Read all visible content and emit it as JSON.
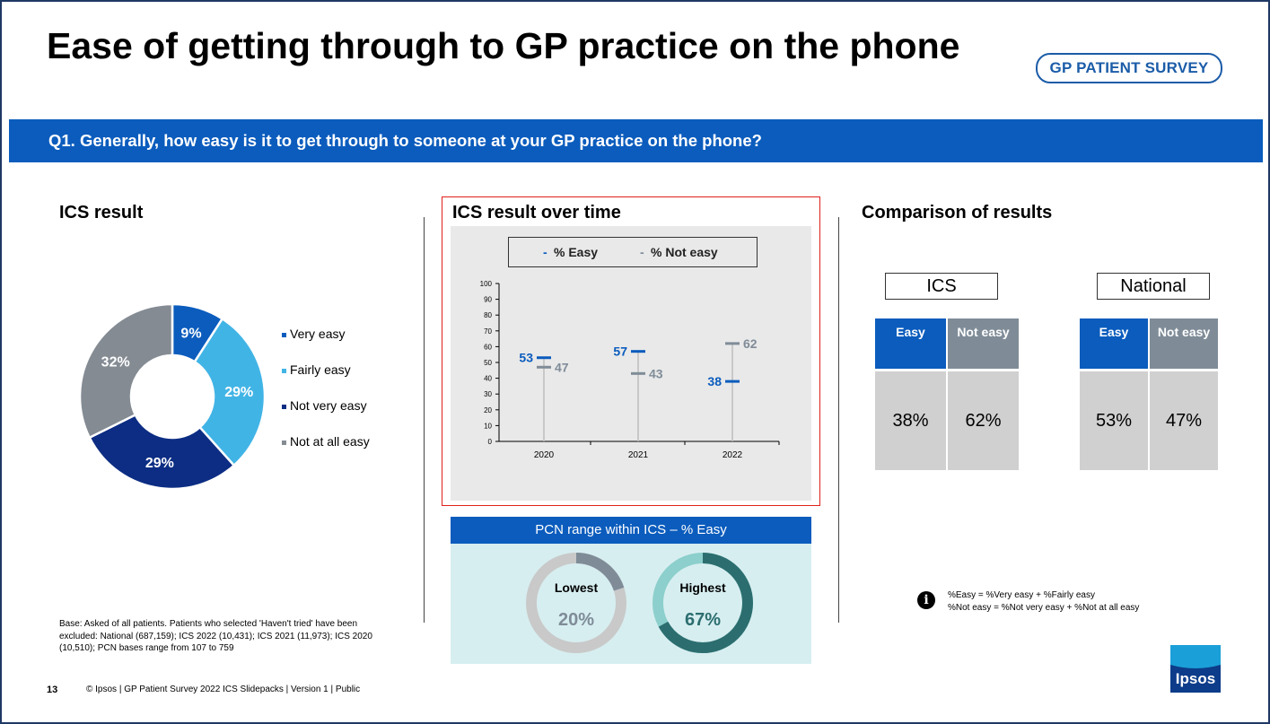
{
  "title": "Ease of getting through to GP practice on the phone",
  "logo_text": "GP PATIENT SURVEY",
  "question": "Q1. Generally, how easy is it to get through to someone at your GP practice on the phone?",
  "ics_result": {
    "title": "ICS result",
    "legend": [
      {
        "label": "Very easy",
        "color": "#0b5cbd"
      },
      {
        "label": "Fairly easy",
        "color": "#41b4e6"
      },
      {
        "label": "Not very easy",
        "color": "#0c2d83"
      },
      {
        "label": "Not at all easy",
        "color": "#848b93"
      }
    ]
  },
  "trend": {
    "title": "ICS result over time",
    "legend_easy": "% Easy",
    "legend_not_easy": "% Not easy"
  },
  "pcn": {
    "title": "PCN range within ICS – % Easy",
    "lowest_label": "Lowest",
    "lowest_value": "20%",
    "lowest_fraction": 0.2,
    "highest_label": "Highest",
    "highest_value": "67%",
    "highest_fraction": 0.67
  },
  "comparison": {
    "title": "Comparison of results",
    "ics": {
      "label": "ICS",
      "easy_head": "Easy",
      "not_easy_head": "Not easy",
      "easy": "38%",
      "not_easy": "62%"
    },
    "national": {
      "label": "National",
      "easy_head": "Easy",
      "not_easy_head": "Not easy",
      "easy": "53%",
      "not_easy": "47%"
    }
  },
  "info_note": [
    "%Easy = %Very easy + %Fairly easy",
    "%Not easy = %Not very easy + %Not at all easy"
  ],
  "base_note": "Base: Asked of all patients. Patients who selected 'Haven't tried' have been excluded: National (687,159); ICS 2022 (10,431); ICS 2021 (11,973); ICS 2020 (10,510); PCN bases range from 107 to 759",
  "footer": {
    "page_number": "13",
    "text": "© Ipsos | GP Patient Survey 2022 ICS Slidepacks | Version 1 | Public"
  },
  "ipsos_logo": "Ipsos",
  "colors": {
    "easy": "#0b5cbd",
    "not_easy": "#7f8c98",
    "accent_bar": "#0b5cbd",
    "highlight_frame": "#e0201b"
  },
  "chart_data": [
    {
      "type": "pie",
      "title": "ICS result",
      "categories": [
        "Very easy",
        "Fairly easy",
        "Not very easy",
        "Not at all easy"
      ],
      "values": [
        9,
        29,
        29,
        32
      ],
      "labels": [
        "9%",
        "29%",
        "29%",
        "32%"
      ],
      "colors": [
        "#0b5cbd",
        "#41b4e6",
        "#0c2d83",
        "#848b93"
      ],
      "legend_position": "right"
    },
    {
      "type": "line",
      "title": "ICS result over time",
      "x": [
        "2020",
        "2021",
        "2022"
      ],
      "series": [
        {
          "name": "% Easy",
          "values": [
            53,
            57,
            38
          ],
          "color": "#0b5cbd"
        },
        {
          "name": "% Not easy",
          "values": [
            47,
            43,
            62
          ],
          "color": "#7f8c98"
        }
      ],
      "y_ticks": [
        0,
        10,
        20,
        30,
        40,
        50,
        60,
        70,
        80,
        90,
        100
      ],
      "ylim": [
        0,
        100
      ],
      "legend_position": "top"
    }
  ]
}
